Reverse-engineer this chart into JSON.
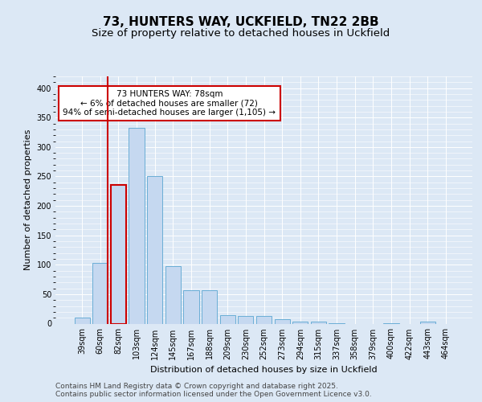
{
  "title_line1": "73, HUNTERS WAY, UCKFIELD, TN22 2BB",
  "title_line2": "Size of property relative to detached houses in Uckfield",
  "xlabel": "Distribution of detached houses by size in Uckfield",
  "ylabel": "Number of detached properties",
  "categories": [
    "39sqm",
    "60sqm",
    "82sqm",
    "103sqm",
    "124sqm",
    "145sqm",
    "167sqm",
    "188sqm",
    "209sqm",
    "230sqm",
    "252sqm",
    "273sqm",
    "294sqm",
    "315sqm",
    "337sqm",
    "358sqm",
    "379sqm",
    "400sqm",
    "422sqm",
    "443sqm",
    "464sqm"
  ],
  "values": [
    10,
    103,
    235,
    333,
    250,
    97,
    57,
    57,
    15,
    13,
    13,
    7,
    3,
    3,
    1,
    0,
    0,
    1,
    0,
    3,
    0
  ],
  "bar_color": "#c5d8f0",
  "bar_edge_color": "#6aaed6",
  "vline_bar_index": 1,
  "vline_color": "#cc0000",
  "annotation_text": "73 HUNTERS WAY: 78sqm\n← 6% of detached houses are smaller (72)\n94% of semi-detached houses are larger (1,105) →",
  "annotation_box_facecolor": "#ffffff",
  "annotation_box_edgecolor": "#cc0000",
  "ylim": [
    0,
    420
  ],
  "yticks": [
    0,
    50,
    100,
    150,
    200,
    250,
    300,
    350,
    400
  ],
  "background_color": "#dce8f5",
  "grid_color": "#ffffff",
  "footer_text": "Contains HM Land Registry data © Crown copyright and database right 2025.\nContains public sector information licensed under the Open Government Licence v3.0.",
  "title_fontsize": 11,
  "subtitle_fontsize": 9.5,
  "axis_label_fontsize": 8,
  "tick_fontsize": 7,
  "annotation_fontsize": 7.5,
  "footer_fontsize": 6.5
}
